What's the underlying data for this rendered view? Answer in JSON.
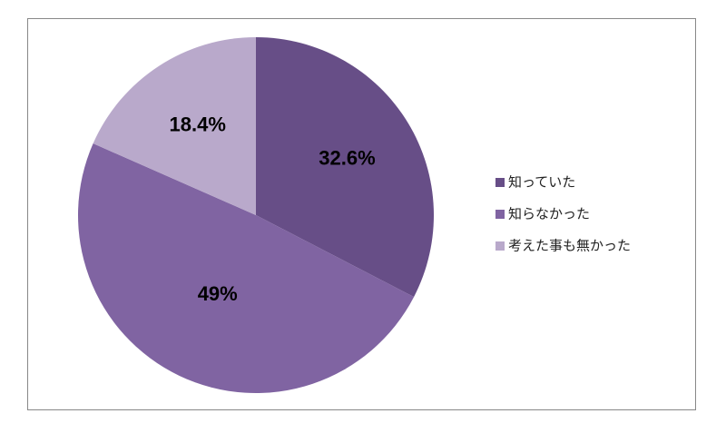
{
  "chart_data": {
    "type": "pie",
    "categories": [
      "知っていた",
      "知らなかった",
      "考えた事も無かった"
    ],
    "values": [
      32.6,
      49,
      18.4
    ],
    "value_labels": [
      "32.6%",
      "49%",
      "18.4%"
    ],
    "colors": [
      "#674e87",
      "#8064a2",
      "#b9a9cb"
    ],
    "legend": "right"
  }
}
